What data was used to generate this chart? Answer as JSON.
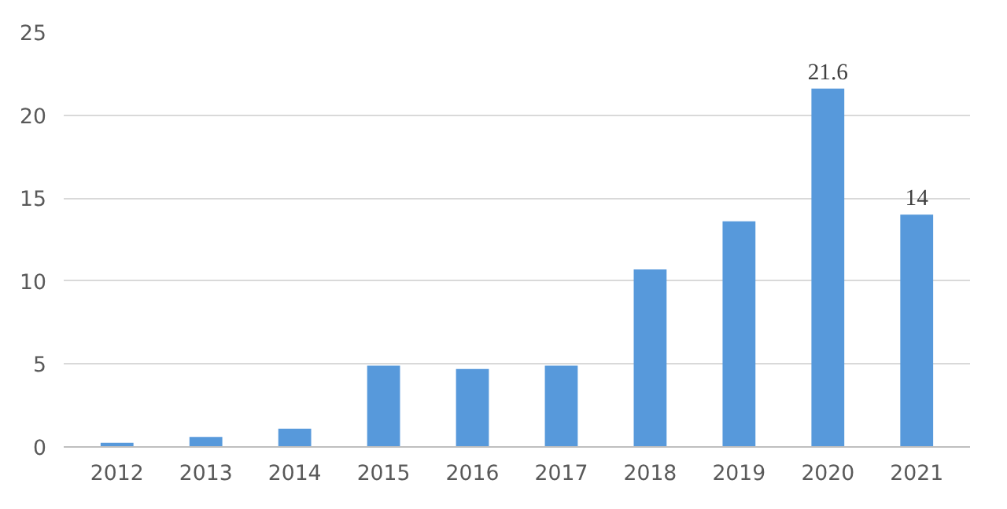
{
  "chart_data": {
    "type": "bar",
    "categories": [
      "2012",
      "2013",
      "2014",
      "2015",
      "2016",
      "2017",
      "2018",
      "2019",
      "2020",
      "2021"
    ],
    "values": [
      0.25,
      0.6,
      1.1,
      4.9,
      4.7,
      4.9,
      10.7,
      13.6,
      21.6,
      14
    ],
    "value_labels": [
      null,
      null,
      null,
      null,
      null,
      null,
      null,
      null,
      "21.6",
      "14"
    ],
    "color": "#5799db",
    "ylim": [
      0,
      25
    ],
    "yticks": [
      0,
      5,
      10,
      15,
      20,
      25
    ],
    "grid": "y"
  }
}
